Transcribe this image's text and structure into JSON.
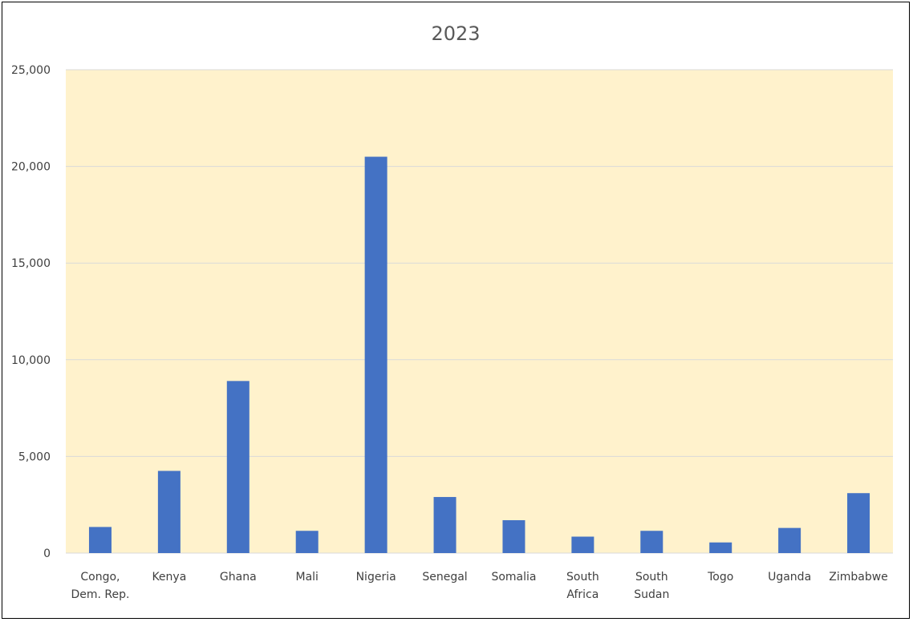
{
  "chart_data": {
    "type": "bar",
    "title": "2023",
    "xlabel": "",
    "ylabel": "",
    "categories": [
      [
        "Congo,",
        "Dem. Rep."
      ],
      [
        "Kenya"
      ],
      [
        "Ghana"
      ],
      [
        "Mali"
      ],
      [
        "Nigeria"
      ],
      [
        "Senegal"
      ],
      [
        "Somalia"
      ],
      [
        "South",
        "Africa"
      ],
      [
        "South",
        "Sudan"
      ],
      [
        "Togo"
      ],
      [
        "Uganda"
      ],
      [
        "Zimbabwe"
      ]
    ],
    "values": [
      1350,
      4250,
      8900,
      1150,
      20500,
      2900,
      1700,
      850,
      1150,
      550,
      1300,
      3100
    ],
    "ylim": [
      0,
      25000
    ],
    "yticks": [
      0,
      5000,
      10000,
      15000,
      20000,
      25000
    ],
    "ytick_labels": [
      "0",
      "5,000",
      "10,000",
      "15,000",
      "20,000",
      "25,000"
    ],
    "grid": true,
    "colors": {
      "bar": "#4472C4",
      "plot_background": "#FFF2CC",
      "gridline": "#D9D9D9",
      "text": "#404040",
      "title": "#595959"
    }
  }
}
